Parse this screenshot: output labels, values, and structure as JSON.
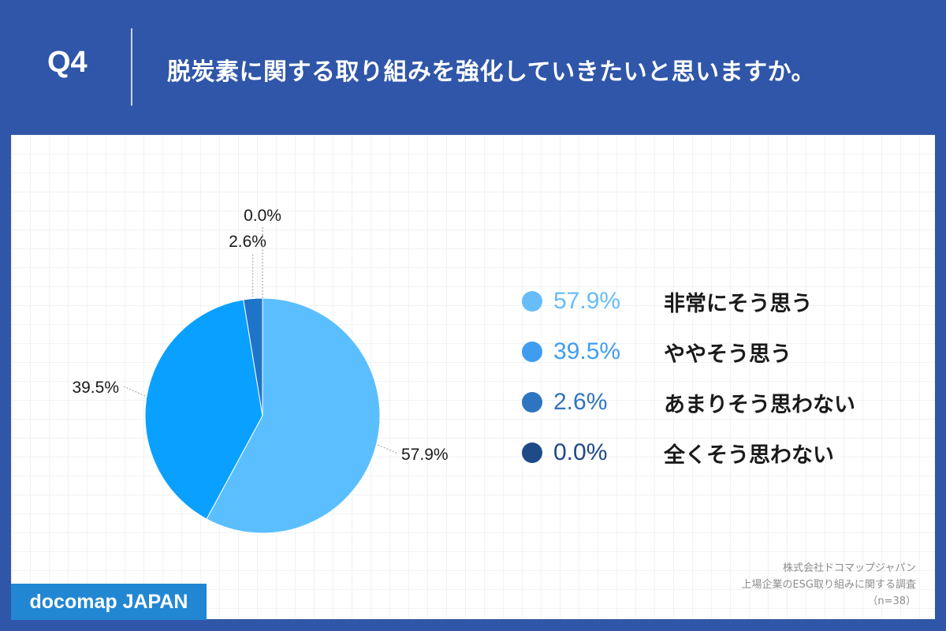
{
  "header": {
    "question_number": "Q4",
    "question_text": "脱炭素に関する取り組みを強化していきたいと思いますか。"
  },
  "chart_data": {
    "type": "pie",
    "categories": [
      "非常にそう思う",
      "ややそう思う",
      "あまりそう思わない",
      "全くそう思わない"
    ],
    "values": [
      57.9,
      39.5,
      2.6,
      0.0
    ],
    "value_labels": [
      "57.9%",
      "39.5%",
      "2.6%",
      "0.0%"
    ],
    "colors": [
      "#5bbfff",
      "#0aa0ff",
      "#1f74c8",
      "#184a8a"
    ],
    "legend_colors": [
      "#67bdf8",
      "#3f9df0",
      "#2f74c0",
      "#1e4a86"
    ],
    "start_angle": "12 o'clock",
    "direction": "clockwise",
    "legend_position": "right"
  },
  "legend": {
    "items": [
      {
        "pct": "57.9%",
        "label": "非常にそう思う"
      },
      {
        "pct": "39.5%",
        "label": "ややそう思う"
      },
      {
        "pct": "2.6%",
        "label": "あまりそう思わない"
      },
      {
        "pct": "0.0%",
        "label": "全くそう思わない"
      }
    ]
  },
  "footer": {
    "brand": "docomap JAPAN",
    "source_line1": "株式会社ドコマップジャパン",
    "source_line2": "上場企業のESG取り組みに関する調査",
    "source_line3": "（n=38）"
  },
  "colors": {
    "background": "#2f56a8",
    "brand_box": "#2287d3"
  }
}
